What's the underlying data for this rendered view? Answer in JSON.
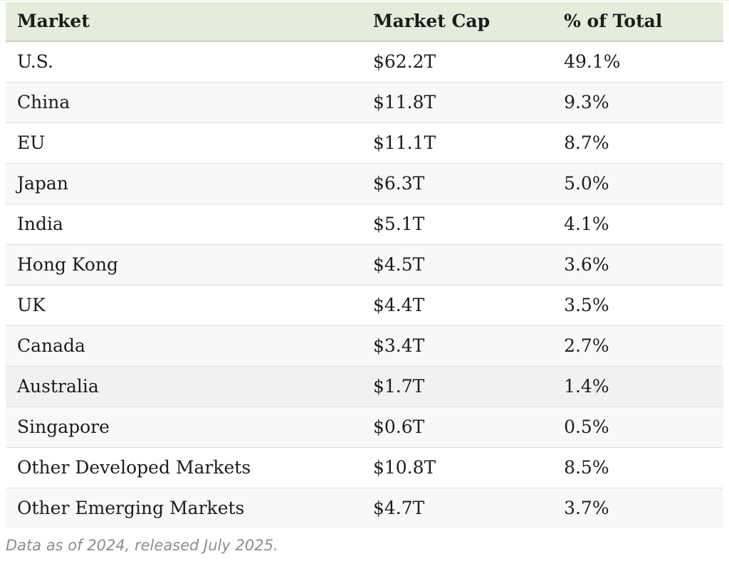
{
  "table": {
    "columns": [
      "Market",
      "Market Cap",
      "% of Total"
    ],
    "rows": [
      {
        "market": "U.S.",
        "cap": "$62.2T",
        "pct": "49.1%",
        "highlighted": false
      },
      {
        "market": "China",
        "cap": "$11.8T",
        "pct": "9.3%",
        "highlighted": false
      },
      {
        "market": "EU",
        "cap": "$11.1T",
        "pct": "8.7%",
        "highlighted": false
      },
      {
        "market": "Japan",
        "cap": "$6.3T",
        "pct": "5.0%",
        "highlighted": false
      },
      {
        "market": "India",
        "cap": "$5.1T",
        "pct": "4.1%",
        "highlighted": false
      },
      {
        "market": "Hong Kong",
        "cap": "$4.5T",
        "pct": "3.6%",
        "highlighted": false
      },
      {
        "market": "UK",
        "cap": "$4.4T",
        "pct": "3.5%",
        "highlighted": false
      },
      {
        "market": "Canada",
        "cap": "$3.4T",
        "pct": "2.7%",
        "highlighted": false
      },
      {
        "market": "Australia",
        "cap": "$1.7T",
        "pct": "1.4%",
        "highlighted": true
      },
      {
        "market": "Singapore",
        "cap": "$0.6T",
        "pct": "0.5%",
        "highlighted": false
      },
      {
        "market": "Other Developed Markets",
        "cap": "$10.8T",
        "pct": "8.5%",
        "highlighted": false
      },
      {
        "market": "Other Emerging Markets",
        "cap": "$4.7T",
        "pct": "3.7%",
        "highlighted": false
      }
    ]
  },
  "footnote": "Data as of 2024, released July 2025.",
  "colors": {
    "page_bg": "#ffffff",
    "header_bg": "#e4ecdc",
    "stripe_bg": "#f8f8f8",
    "highlight_bg": "#f1f1f1",
    "row_border": "#dddddd",
    "header_border": "#cccccc",
    "text": "#1c1c1c",
    "footnote_text": "#8d8d8d",
    "top_hairline": "#ededed"
  },
  "chart_data": {
    "type": "table",
    "columns": [
      "Market",
      "Market Cap",
      "% of Total"
    ],
    "categories": [
      "U.S.",
      "China",
      "EU",
      "Japan",
      "India",
      "Hong Kong",
      "UK",
      "Canada",
      "Australia",
      "Singapore",
      "Other Developed Markets",
      "Other Emerging Markets"
    ],
    "series": [
      {
        "name": "Market Cap (USD trillions)",
        "values": [
          62.2,
          11.8,
          11.1,
          6.3,
          5.1,
          4.5,
          4.4,
          3.4,
          1.7,
          0.6,
          10.8,
          4.7
        ]
      },
      {
        "name": "% of Total",
        "values": [
          49.1,
          9.3,
          8.7,
          5.0,
          4.1,
          3.6,
          3.5,
          2.7,
          1.4,
          0.5,
          8.5,
          3.7
        ]
      }
    ],
    "footnote": "Data as of 2024, released July 2025."
  }
}
